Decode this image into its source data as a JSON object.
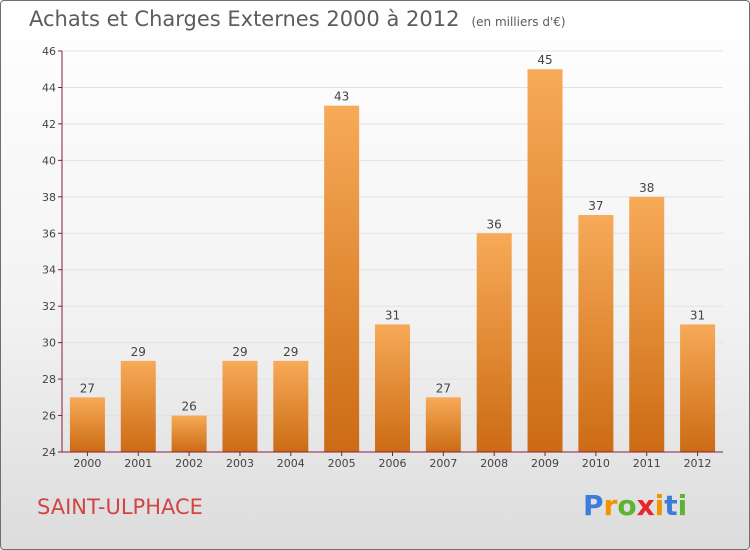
{
  "title": "Achats et Charges Externes 2000 à 2012",
  "subtitle": "(en milliers d'€)",
  "commune": "SAINT-ULPHACE",
  "logo": {
    "letters": [
      "P",
      "r",
      "o",
      "x",
      "i",
      "t",
      "i"
    ],
    "colors": [
      "#3b7dd8",
      "#f29400",
      "#5bb530",
      "#e8262a",
      "#f29400",
      "#3b7dd8",
      "#5bb530"
    ]
  },
  "colors": {
    "bar_top": "#f7aa58",
    "bar_bottom": "#cc6b14",
    "grid": "#e2e2e2",
    "axis": "#8b1a3a"
  },
  "chart_data": {
    "type": "bar",
    "categories": [
      "2000",
      "2001",
      "2002",
      "2003",
      "2004",
      "2005",
      "2006",
      "2007",
      "2008",
      "2009",
      "2010",
      "2011",
      "2012"
    ],
    "values": [
      27,
      29,
      26,
      29,
      29,
      43,
      31,
      27,
      36,
      45,
      37,
      38,
      31
    ],
    "yticks": [
      24,
      26,
      28,
      30,
      32,
      34,
      36,
      38,
      40,
      42,
      44,
      46
    ],
    "ylim": [
      24,
      46
    ],
    "grid": true,
    "title": "Achats et Charges Externes 2000 à 2012",
    "subtitle": "(en milliers d'€)"
  }
}
